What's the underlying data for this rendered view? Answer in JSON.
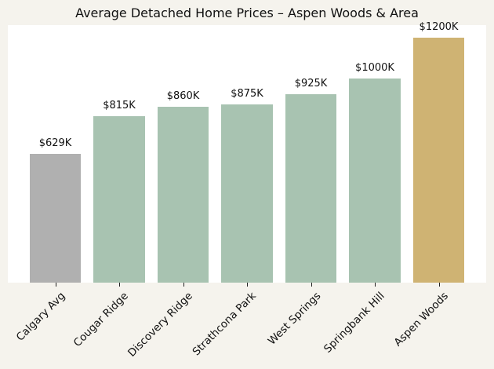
{
  "chart_data": {
    "type": "bar",
    "title": "Average Detached Home Prices – Aspen Woods & Area",
    "xlabel": "",
    "ylabel": "",
    "categories": [
      "Calgary Avg",
      "Cougar Ridge",
      "Discovery Ridge",
      "Strathcona Park",
      "West Springs",
      "Springbank Hill",
      "Aspen Woods"
    ],
    "values": [
      629,
      815,
      860,
      875,
      925,
      1000,
      1200
    ],
    "value_labels": [
      "$629K",
      "$815K",
      "$860K",
      "$875K",
      "$925K",
      "$1000K",
      "$1200K"
    ],
    "unit": "thousand CAD",
    "colors": [
      "#b0b0b0",
      "#a8c3b1",
      "#a8c3b1",
      "#a8c3b1",
      "#a8c3b1",
      "#a8c3b1",
      "#cfb373"
    ],
    "ylim": [
      0,
      1260
    ],
    "grid": false,
    "legend": null,
    "y_axis_visible": false
  },
  "colors": {
    "background": "#f5f3ed",
    "plot_background": "#ffffff",
    "baseline_bar": "#b0b0b0",
    "comparison_bar": "#a8c3b1",
    "highlight_bar": "#cfb373"
  }
}
